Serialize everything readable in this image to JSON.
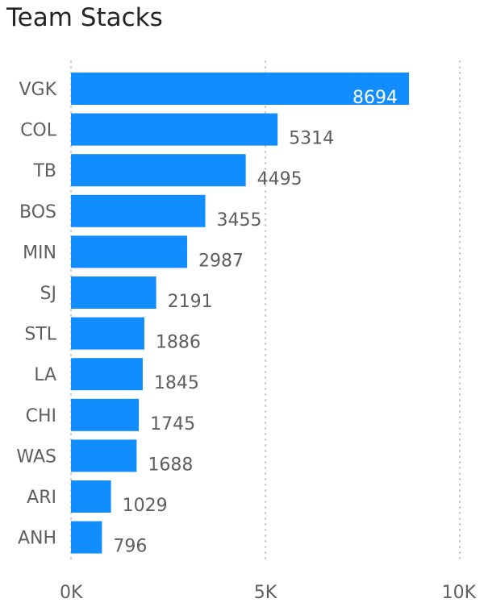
{
  "colors": {
    "bar": "#118DFF",
    "label": "#605e5c",
    "label_inside": "#ffffff",
    "gridline": "#c8c6c4",
    "title": "#252423"
  },
  "chart_data": {
    "type": "bar",
    "orientation": "horizontal",
    "title": "Team Stacks",
    "categories": [
      "VGK",
      "COL",
      "TB",
      "BOS",
      "MIN",
      "SJ",
      "STL",
      "LA",
      "CHI",
      "WAS",
      "ARI",
      "ANH"
    ],
    "values": [
      8694,
      5314,
      4495,
      3455,
      2987,
      2191,
      1886,
      1845,
      1745,
      1688,
      1029,
      796
    ],
    "xlim": [
      0,
      10000
    ],
    "xticks": [
      0,
      5000,
      10000
    ],
    "xtick_labels": [
      "0K",
      "5K",
      "10K"
    ],
    "grid": true,
    "xlabel": "",
    "ylabel": ""
  }
}
